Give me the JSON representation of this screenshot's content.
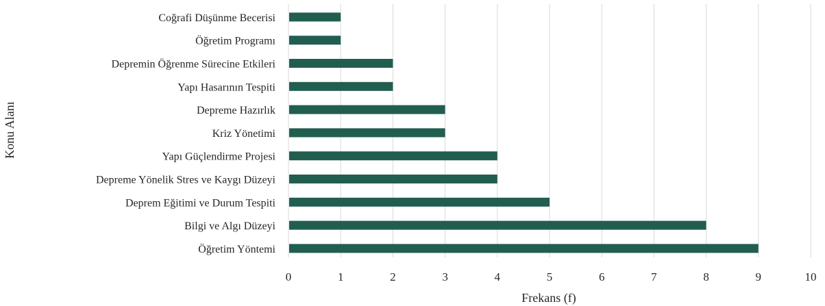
{
  "chart_data": {
    "type": "bar",
    "orientation": "horizontal",
    "categories": [
      "Coğrafi Düşünme Becerisi",
      "Öğretim Programı",
      "Depremin Öğrenme Sürecine Etkileri",
      "Yapı Hasarının Tespiti",
      "Depreme Hazırlık",
      "Kriz Yönetimi",
      "Yapı Güçlendirme Projesi",
      "Depreme Yönelik Stres ve Kaygı Düzeyi",
      "Deprem Eğitimi ve Durum Tespiti",
      "Bilgi ve Algı Düzeyi",
      "Öğretim Yöntemi"
    ],
    "values": [
      1,
      1,
      2,
      2,
      3,
      3,
      4,
      4,
      5,
      8,
      9
    ],
    "xlabel": "Frekans (f)",
    "ylabel": "Konu Alanı",
    "xlim": [
      0,
      10
    ],
    "xticks": [
      "0",
      "1",
      "2",
      "3",
      "4",
      "5",
      "6",
      "7",
      "8",
      "9",
      "10"
    ],
    "grid": true,
    "bar_color": "#215e4f"
  }
}
